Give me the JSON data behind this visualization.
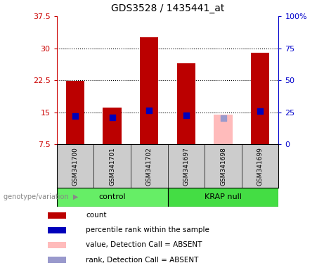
{
  "title": "GDS3528 / 1435441_at",
  "samples": [
    "GSM341700",
    "GSM341701",
    "GSM341702",
    "GSM341697",
    "GSM341698",
    "GSM341699"
  ],
  "group_labels": [
    "control",
    "KRAP null"
  ],
  "group_ctrl_color": "#66ee66",
  "group_krap_color": "#44dd44",
  "bar_color_red": "#bb0000",
  "bar_color_pink": "#ffbbbb",
  "dot_color_blue": "#0000bb",
  "dot_color_lightblue": "#9999cc",
  "ylim_left": [
    7.5,
    37.5
  ],
  "ylim_right": [
    0,
    100
  ],
  "yticks_left": [
    7.5,
    15.0,
    22.5,
    30.0,
    37.5
  ],
  "yticks_right": [
    0,
    25,
    50,
    75,
    100
  ],
  "ytick_labels_left": [
    "7.5",
    "15",
    "22.5",
    "30",
    "37.5"
  ],
  "ytick_labels_right": [
    "0",
    "25",
    "50",
    "75",
    "100%"
  ],
  "hlines": [
    15.0,
    22.5,
    30.0
  ],
  "count_values": [
    22.4,
    16.2,
    32.5,
    26.5,
    0.0,
    29.0
  ],
  "absent_value": [
    0,
    0,
    0,
    0,
    14.5,
    0
  ],
  "percentile_values": [
    22.4,
    21.0,
    26.8,
    22.5,
    0,
    26.2
  ],
  "absent_rank_values": [
    0,
    0,
    0,
    0,
    20.5,
    0
  ],
  "bar_width": 0.5,
  "dot_size": 35,
  "legend_items": [
    {
      "label": "count",
      "color": "#bb0000"
    },
    {
      "label": "percentile rank within the sample",
      "color": "#0000bb"
    },
    {
      "label": "value, Detection Call = ABSENT",
      "color": "#ffbbbb"
    },
    {
      "label": "rank, Detection Call = ABSENT",
      "color": "#9999cc"
    }
  ],
  "left_axis_color": "#cc0000",
  "right_axis_color": "#0000cc",
  "background_color": "#ffffff",
  "sample_area_color": "#cccccc",
  "genotype_label": "genotype/variation"
}
